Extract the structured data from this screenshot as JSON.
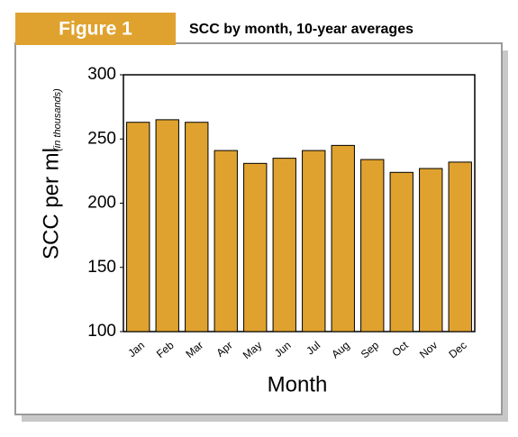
{
  "figure_label": "Figure 1",
  "chart_data": {
    "type": "bar",
    "title": "SCC by month, 10-year averages",
    "ylabel": "SCC per ml",
    "ylabel_note": "(in thousands)",
    "xlabel": "Month",
    "categories": [
      "Jan",
      "Feb",
      "Mar",
      "Apr",
      "May",
      "Jun",
      "Jul",
      "Aug",
      "Sep",
      "Oct",
      "Nov",
      "Dec"
    ],
    "values": [
      263,
      265,
      263,
      241,
      231,
      235,
      241,
      245,
      234,
      224,
      227,
      232
    ],
    "color": "#e0a22f",
    "ylim": [
      100,
      300
    ],
    "yticks": [
      100,
      150,
      200,
      250,
      300
    ],
    "grid": false
  }
}
